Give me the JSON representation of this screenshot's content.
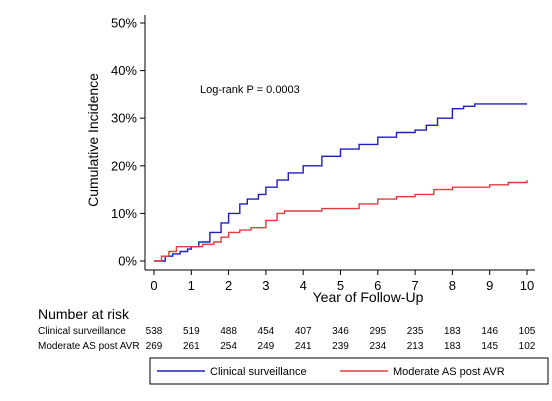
{
  "chart_data": {
    "type": "line",
    "ylabel": "Cumulative Incidence",
    "xlabel": "Year of Follow-Up",
    "xlim": [
      0,
      10
    ],
    "ylim": [
      0,
      50
    ],
    "xticks": [
      "0",
      "1",
      "2",
      "3",
      "4",
      "5",
      "6",
      "7",
      "8",
      "9",
      "10"
    ],
    "yticks": [
      "0%",
      "10%",
      "20%",
      "30%",
      "40%",
      "50%"
    ],
    "annotation": "Log-rank P = 0.0003",
    "grid": false,
    "legend_position": "bottom",
    "series": [
      {
        "name": "Clinical surveillance",
        "color": "#1f1fbf",
        "x": [
          0,
          0.1,
          0.3,
          0.5,
          0.7,
          0.9,
          1.0,
          1.2,
          1.5,
          1.8,
          2.0,
          2.3,
          2.5,
          2.8,
          3.0,
          3.3,
          3.6,
          4.0,
          4.5,
          5.0,
          5.5,
          6.0,
          6.5,
          7.0,
          7.3,
          7.6,
          8.0,
          8.3,
          8.6,
          9.0,
          9.5,
          10.0
        ],
        "y": [
          0,
          0,
          1,
          1.5,
          2,
          2.5,
          3,
          4,
          6,
          8,
          10,
          12,
          13,
          14,
          15.5,
          17,
          18.5,
          20,
          22,
          23.5,
          24.5,
          26,
          27,
          27.5,
          28.5,
          30,
          32,
          32.5,
          33,
          33,
          33,
          33
        ]
      },
      {
        "name": "Moderate AS post AVR",
        "color": "#e03c3c",
        "x": [
          0,
          0.1,
          0.2,
          0.4,
          0.6,
          0.8,
          1.0,
          1.3,
          1.6,
          1.8,
          2.0,
          2.3,
          2.6,
          3.0,
          3.3,
          3.5,
          4.0,
          4.5,
          5.0,
          5.5,
          6.0,
          6.5,
          7.0,
          7.5,
          8.0,
          8.5,
          9.0,
          9.5,
          10.0
        ],
        "y": [
          0,
          0,
          1,
          2,
          3,
          3,
          3,
          3.5,
          4,
          5,
          6,
          6.5,
          7,
          8.5,
          10,
          10.5,
          10.5,
          11,
          11,
          12,
          13,
          13.5,
          14,
          15,
          15.5,
          15.5,
          16,
          16.5,
          17
        ]
      }
    ]
  },
  "risk_table": {
    "title": "Number at risk",
    "rows": [
      {
        "label": "Clinical surveillance",
        "values": [
          "538",
          "519",
          "488",
          "454",
          "407",
          "346",
          "295",
          "235",
          "183",
          "146",
          "105"
        ]
      },
      {
        "label": "Moderate AS post AVR",
        "values": [
          "269",
          "261",
          "254",
          "249",
          "241",
          "239",
          "234",
          "213",
          "183",
          "145",
          "102"
        ]
      }
    ]
  }
}
